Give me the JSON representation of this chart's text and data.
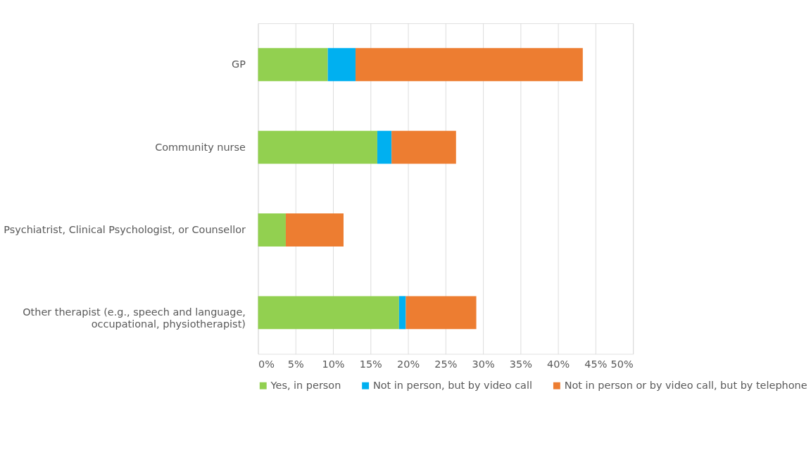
{
  "chart_data": {
    "type": "bar",
    "orientation": "horizontal",
    "stacked": true,
    "categories": [
      "GP",
      "Community nurse",
      "Psychiatrist, Clinical Psychologist, or Counsellor",
      "Other therapist (e.g., speech and language, occupational, physiotherapist)"
    ],
    "series": [
      {
        "name": "Yes, in person",
        "color": "#92d050",
        "values": [
          9.3,
          15.9,
          3.7,
          18.8
        ]
      },
      {
        "name": "Not in person, but by video call",
        "color": "#00b0f0",
        "values": [
          3.7,
          1.9,
          0,
          0.9
        ]
      },
      {
        "name": "Not in person or by video call, but by telephone",
        "color": "#ed7d31",
        "values": [
          30.3,
          8.6,
          7.7,
          9.4
        ]
      }
    ],
    "xlim": [
      0,
      50
    ],
    "xticks": [
      {
        "value": 0,
        "label": "0%"
      },
      {
        "value": 5,
        "label": "5%"
      },
      {
        "value": 10,
        "label": "10%"
      },
      {
        "value": 15,
        "label": "15%"
      },
      {
        "value": 20,
        "label": "20%"
      },
      {
        "value": 25,
        "label": "25%"
      },
      {
        "value": 30,
        "label": "30%"
      },
      {
        "value": 35,
        "label": "35%"
      },
      {
        "value": 40,
        "label": "40%"
      },
      {
        "value": 45,
        "label": "45%"
      },
      {
        "value": 50,
        "label": "50%"
      }
    ],
    "grid": "x",
    "legend": "bottom"
  }
}
